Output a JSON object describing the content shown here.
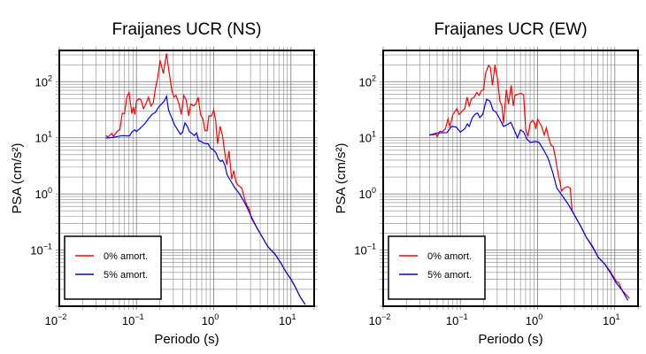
{
  "chart_data": [
    {
      "type": "line",
      "title": "Fraijanes UCR (NS)",
      "xlabel": "Periodo (s)",
      "ylabel": "PSA (cm/s²)",
      "xscale": "log",
      "yscale": "log",
      "xlim": [
        0.01,
        20
      ],
      "ylim": [
        0.01,
        360
      ],
      "grid": true,
      "legend_position": "bottom-left",
      "x_ticks": [
        {
          "base": "10",
          "exp": "−2",
          "value": 0.01
        },
        {
          "base": "10",
          "exp": "−1",
          "value": 0.1
        },
        {
          "base": "10",
          "exp": "0",
          "value": 1
        },
        {
          "base": "10",
          "exp": "1",
          "value": 10
        }
      ],
      "y_ticks": [
        {
          "base": "10",
          "exp": "−1",
          "value": 0.1
        },
        {
          "base": "10",
          "exp": "0",
          "value": 1
        },
        {
          "base": "10",
          "exp": "1",
          "value": 10
        },
        {
          "base": "10",
          "exp": "2",
          "value": 100
        }
      ],
      "series": [
        {
          "name": "0% amort.",
          "color": "#ff0000",
          "x": [
            0.04,
            0.0425,
            0.048,
            0.05,
            0.056,
            0.061,
            0.0655,
            0.07,
            0.075,
            0.08,
            0.087,
            0.091,
            0.095,
            0.1,
            0.108,
            0.115,
            0.123,
            0.132,
            0.143,
            0.154,
            0.165,
            0.176,
            0.188,
            0.202,
            0.213,
            0.223,
            0.245,
            0.266,
            0.288,
            0.306,
            0.325,
            0.355,
            0.38,
            0.41,
            0.44,
            0.475,
            0.505,
            0.55,
            0.585,
            0.63,
            0.675,
            0.725,
            0.77,
            0.82,
            0.865,
            0.94,
            1.0,
            1.06,
            1.12,
            1.21,
            1.3,
            1.39,
            1.48,
            1.58,
            1.71,
            1.81,
            1.95,
            2.08,
            2.31,
            2.53,
            2.7,
            2.87,
            3.1,
            3.7,
            4.2,
            5.0,
            6.2,
            7.4,
            8.8,
            10,
            11.5,
            13.2,
            15.3
          ],
          "y": [
            11,
            10.3,
            12,
            10.5,
            13,
            14,
            27.5,
            27,
            53,
            64,
            27,
            35,
            26,
            45,
            50,
            47,
            33,
            40,
            53,
            37,
            42,
            77,
            117,
            240,
            178,
            140,
            318,
            140,
            68,
            53,
            57,
            40,
            26,
            57,
            47,
            24.5,
            40,
            37,
            40,
            53,
            26,
            21.5,
            13.4,
            13.4,
            24.5,
            24.5,
            31,
            20.5,
            7.8,
            16,
            11,
            5.4,
            3.3,
            5.8,
            1.83,
            2.6,
            1.6,
            1.43,
            1.27,
            0.79,
            0.62,
            0.55,
            0.36,
            0.236,
            0.176,
            0.116,
            0.0855,
            0.059,
            0.039,
            0.0305,
            0.0215,
            0.0146,
            0.0107
          ]
        },
        {
          "name": "5% amort.",
          "color": "#0000ff",
          "x": [
            0.04,
            0.049,
            0.064,
            0.081,
            0.087,
            0.095,
            0.1,
            0.113,
            0.129,
            0.147,
            0.161,
            0.176,
            0.192,
            0.21,
            0.229,
            0.245,
            0.26,
            0.285,
            0.311,
            0.34,
            0.371,
            0.395,
            0.424,
            0.455,
            0.484,
            0.53,
            0.56,
            0.6,
            0.64,
            0.69,
            0.75,
            0.85,
            0.91,
            0.98,
            1.07,
            1.15,
            1.23,
            1.3,
            1.39,
            1.49,
            1.66,
            1.89,
            2.16,
            2.46,
            2.8,
            3.1,
            3.7,
            4.2,
            5.0,
            6.2,
            7.4,
            8.8,
            10,
            11.5,
            13.2,
            15.3
          ],
          "y": [
            9.9,
            10.1,
            10.9,
            10.8,
            12.6,
            13.8,
            12.9,
            15,
            18,
            23,
            26.5,
            28.5,
            35,
            40,
            45,
            55,
            31,
            23,
            17,
            14,
            11.5,
            12.6,
            18.5,
            16,
            12.9,
            11.8,
            10.9,
            12.2,
            8.8,
            8.6,
            8,
            7.8,
            6.5,
            6.2,
            5.4,
            4.2,
            3.8,
            4.0,
            3.3,
            2.2,
            1.7,
            1.27,
            1.0,
            0.74,
            0.52,
            0.38,
            0.236,
            0.176,
            0.116,
            0.0855,
            0.059,
            0.039,
            0.0305,
            0.0215,
            0.0146,
            0.0107
          ]
        }
      ]
    },
    {
      "type": "line",
      "title": "Fraijanes UCR (EW)",
      "xlabel": "Periodo (s)",
      "ylabel": "PSA (cm/s²)",
      "xscale": "log",
      "yscale": "log",
      "xlim": [
        0.01,
        20
      ],
      "ylim": [
        0.01,
        360
      ],
      "grid": true,
      "legend_position": "bottom-left",
      "x_ticks": [
        {
          "base": "10",
          "exp": "−2",
          "value": 0.01
        },
        {
          "base": "10",
          "exp": "−1",
          "value": 0.1
        },
        {
          "base": "10",
          "exp": "0",
          "value": 1
        },
        {
          "base": "10",
          "exp": "1",
          "value": 10
        }
      ],
      "y_ticks": [
        {
          "base": "10",
          "exp": "−1",
          "value": 0.1
        },
        {
          "base": "10",
          "exp": "0",
          "value": 1
        },
        {
          "base": "10",
          "exp": "1",
          "value": 10
        },
        {
          "base": "10",
          "exp": "2",
          "value": 100
        }
      ],
      "series": [
        {
          "name": "0% amort.",
          "color": "#ff0000",
          "x": [
            0.0395,
            0.049,
            0.05,
            0.054,
            0.059,
            0.064,
            0.069,
            0.073,
            0.08,
            0.09,
            0.096,
            0.106,
            0.114,
            0.122,
            0.13,
            0.14,
            0.151,
            0.163,
            0.175,
            0.186,
            0.2,
            0.212,
            0.232,
            0.245,
            0.26,
            0.28,
            0.303,
            0.325,
            0.345,
            0.361,
            0.394,
            0.42,
            0.455,
            0.484,
            0.51,
            0.56,
            0.61,
            0.66,
            0.7,
            0.75,
            0.8,
            0.86,
            0.92,
            0.95,
            1.0,
            1.07,
            1.13,
            1.22,
            1.3,
            1.39,
            1.49,
            1.59,
            1.7,
            1.81,
            1.95,
            2.04,
            2.22,
            2.43,
            2.65,
            2.8,
            3.6,
            4.3,
            5.1,
            6.2,
            7.3,
            8.7,
            10.4,
            11.3,
            12.4,
            15.5
          ],
          "y": [
            11.2,
            11.5,
            10.4,
            13,
            13,
            14.5,
            21.5,
            16,
            26,
            33,
            26,
            30,
            33,
            53,
            37,
            50,
            53,
            64,
            57,
            68,
            72,
            140,
            195,
            178,
            86,
            200,
            110,
            45,
            37,
            18,
            72,
            40,
            86,
            37,
            57,
            60,
            62,
            58,
            14.3,
            10.6,
            18,
            20.5,
            18,
            14.3,
            21.5,
            18,
            16,
            11.2,
            15,
            10,
            7.4,
            7,
            4.5,
            2.6,
            1.6,
            1.13,
            1.27,
            1.35,
            1.27,
            0.5,
            0.27,
            0.166,
            0.12,
            0.072,
            0.058,
            0.042,
            0.028,
            0.026,
            0.0193,
            0.0138
          ]
        },
        {
          "name": "5% amort.",
          "color": "#0000ff",
          "x": [
            0.0395,
            0.051,
            0.067,
            0.077,
            0.088,
            0.1,
            0.114,
            0.123,
            0.13,
            0.143,
            0.156,
            0.167,
            0.178,
            0.194,
            0.218,
            0.242,
            0.265,
            0.29,
            0.33,
            0.361,
            0.4,
            0.45,
            0.49,
            0.55,
            0.6,
            0.66,
            0.73,
            0.8,
            0.95,
            1.04,
            1.19,
            1.37,
            1.56,
            1.78,
            2.12,
            2.54,
            2.88,
            3.6,
            4.3,
            5.1,
            6.2,
            7.3,
            8.7,
            10.4,
            12.4,
            14.8
          ],
          "y": [
            11.2,
            12.2,
            12.4,
            16,
            15.6,
            12.6,
            14.5,
            17.7,
            16,
            23,
            26.5,
            27.5,
            23,
            26,
            48.6,
            45,
            31,
            28.5,
            20.5,
            16,
            17,
            18.8,
            14.5,
            10,
            13.8,
            12.6,
            9.4,
            8.3,
            8.6,
            8.3,
            6.2,
            4.3,
            2.5,
            1.27,
            0.9,
            0.63,
            0.46,
            0.27,
            0.166,
            0.116,
            0.072,
            0.058,
            0.04,
            0.0263,
            0.0193,
            0.0127
          ]
        }
      ]
    }
  ]
}
